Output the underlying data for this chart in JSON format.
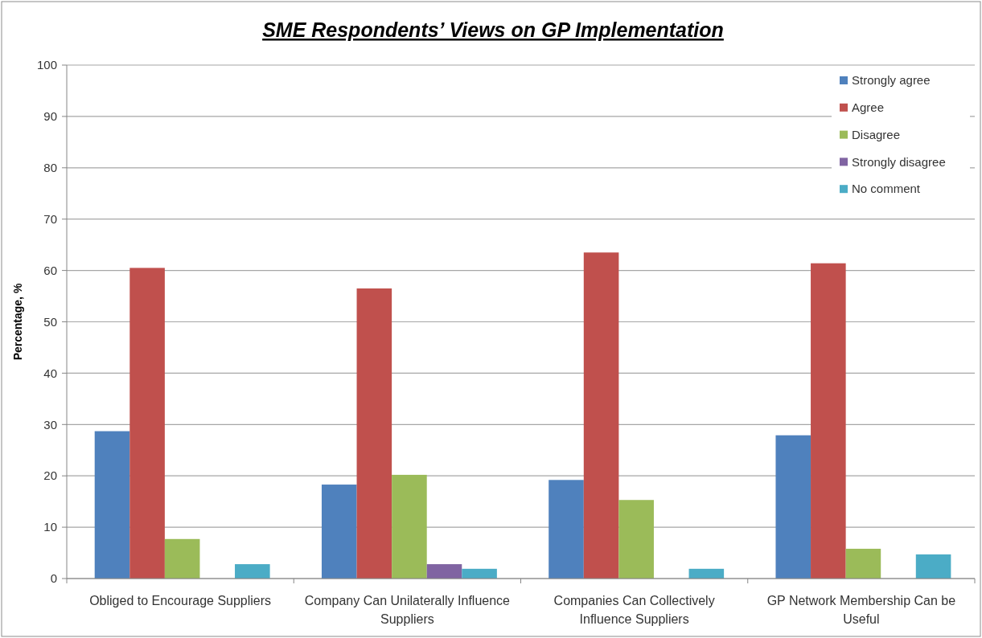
{
  "chart_data": {
    "type": "bar",
    "title": "SME Respondents’ Views on GP Implementation",
    "ylabel": "Percentage, %",
    "categories": [
      "Obliged to Encourage Suppliers",
      "Company Can Unilaterally Influence Suppliers",
      "Companies Can Collectively Influence Suppliers",
      "GP Network Membership Can be Useful"
    ],
    "series": [
      {
        "name": "Strongly agree",
        "color": "#4f81bd",
        "values": [
          28.7,
          18.3,
          19.2,
          27.9
        ]
      },
      {
        "name": "Agree",
        "color": "#c0504d",
        "values": [
          60.5,
          56.5,
          63.5,
          61.4
        ]
      },
      {
        "name": "Disagree",
        "color": "#9bbb59",
        "values": [
          7.7,
          20.2,
          15.3,
          5.8
        ]
      },
      {
        "name": "Strongly disagree",
        "color": "#8064a2",
        "values": [
          0,
          2.8,
          0,
          0
        ]
      },
      {
        "name": "No comment",
        "color": "#4bacc6",
        "values": [
          2.8,
          1.9,
          1.9,
          4.7
        ]
      }
    ],
    "ylim": [
      0,
      100
    ],
    "yticks": [
      0,
      10,
      20,
      30,
      40,
      50,
      60,
      70,
      80,
      90,
      100
    ],
    "grid": "y",
    "legend": "top right"
  }
}
